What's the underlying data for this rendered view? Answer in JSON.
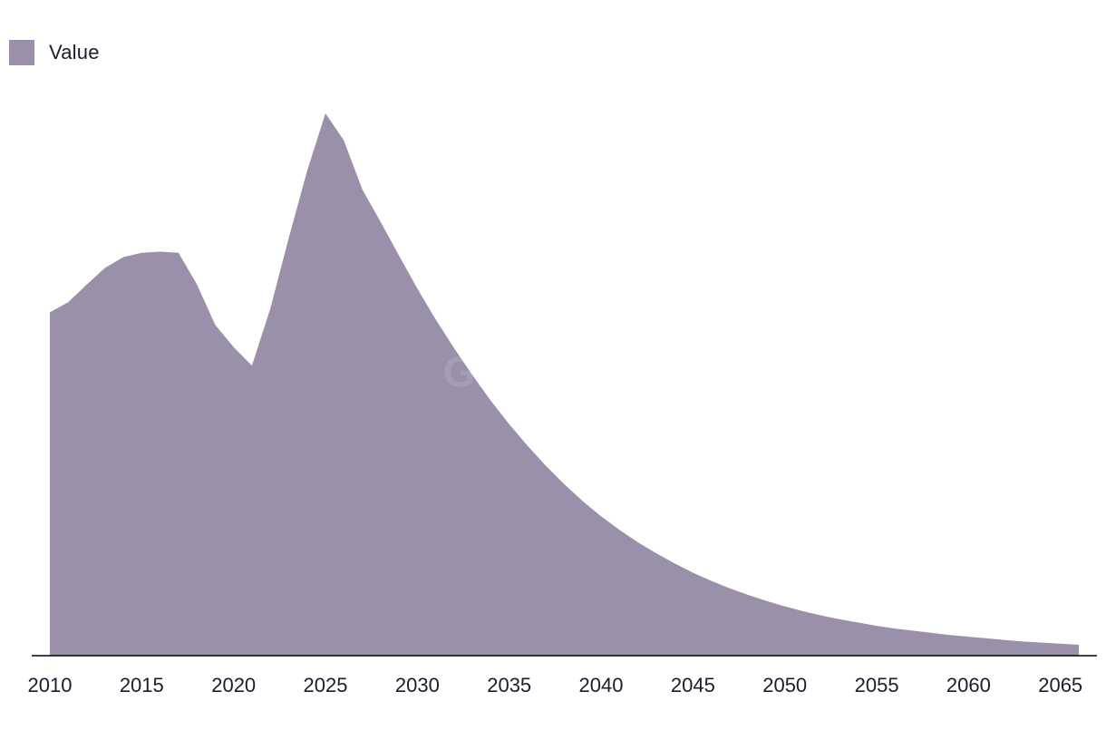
{
  "legend": {
    "label": "Value"
  },
  "watermark": "GlobalData",
  "colors": {
    "area": "#9a90aa",
    "axis": "#000000",
    "text": "#1f1b2e"
  },
  "chart_data": {
    "type": "area",
    "title": "",
    "xlabel": "",
    "ylabel": "",
    "grid": false,
    "legend_position": "top-left",
    "xlim": [
      2010,
      2066
    ],
    "ylim": [
      0,
      100
    ],
    "x_ticks": [
      2010,
      2015,
      2020,
      2025,
      2030,
      2035,
      2040,
      2045,
      2050,
      2055,
      2060,
      2065
    ],
    "series": [
      {
        "name": "Value",
        "x": [
          2010,
          2011,
          2012,
          2013,
          2014,
          2015,
          2016,
          2017,
          2018,
          2019,
          2020,
          2021,
          2022,
          2023,
          2024,
          2025,
          2026,
          2027,
          2028,
          2029,
          2030,
          2031,
          2032,
          2033,
          2034,
          2035,
          2036,
          2037,
          2038,
          2039,
          2040,
          2041,
          2042,
          2043,
          2044,
          2045,
          2046,
          2047,
          2048,
          2049,
          2050,
          2051,
          2052,
          2053,
          2054,
          2055,
          2056,
          2057,
          2058,
          2059,
          2060,
          2061,
          2062,
          2063,
          2064,
          2065,
          2066
        ],
        "values": [
          63.3,
          65.2,
          68.4,
          71.5,
          73.5,
          74.3,
          74.5,
          74.3,
          68.5,
          61.0,
          56.9,
          53.5,
          64.0,
          77.0,
          89.4,
          100.0,
          95.0,
          86.0,
          80.0,
          73.8,
          67.7,
          62.0,
          56.7,
          51.7,
          47.0,
          42.7,
          38.7,
          35.0,
          31.6,
          28.5,
          25.7,
          23.2,
          20.9,
          18.9,
          17.0,
          15.3,
          13.8,
          12.4,
          11.2,
          10.1,
          9.1,
          8.2,
          7.4,
          6.7,
          6.1,
          5.5,
          5.0,
          4.6,
          4.2,
          3.8,
          3.5,
          3.2,
          2.9,
          2.6,
          2.4,
          2.2,
          2.0
        ]
      }
    ]
  }
}
